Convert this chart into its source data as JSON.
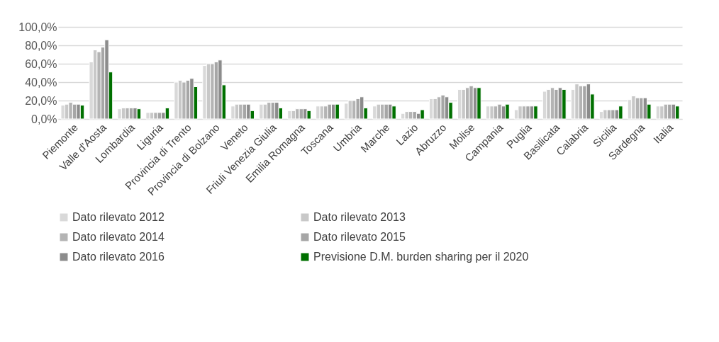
{
  "chart_data": {
    "type": "bar",
    "categories": [
      "Piemonte",
      "Valle d'Aosta",
      "Lombardia",
      "Liguria",
      "Provincia di Trento",
      "Provincia di Bolzano",
      "Veneto",
      "Friuli Venezia Giulia",
      "Emilia Romagna",
      "Toscana",
      "Umbria",
      "Marche",
      "Lazio",
      "Abruzzo",
      "Molise",
      "Campania",
      "Puglia",
      "Basilicata",
      "Calabria",
      "Sicilia",
      "Sardegna",
      "Italia"
    ],
    "series": [
      {
        "name": "Dato rilevato 2012",
        "color": "#d9d9d9",
        "values": [
          15,
          62,
          11,
          7,
          40,
          58,
          14,
          16,
          9,
          14,
          17,
          14,
          6,
          22,
          32,
          14,
          10,
          30,
          32,
          8,
          21,
          14
        ]
      },
      {
        "name": "Dato rilevato 2013",
        "color": "#c8c8c8",
        "values": [
          16,
          75,
          12,
          7,
          42,
          60,
          16,
          16,
          9,
          14,
          20,
          16,
          8,
          22,
          32,
          14,
          14,
          32,
          38,
          10,
          25,
          14
        ]
      },
      {
        "name": "Dato rilevato 2014",
        "color": "#b4b4b4",
        "values": [
          18,
          73,
          12,
          7,
          40,
          60,
          16,
          18,
          11,
          14,
          20,
          16,
          8,
          24,
          34,
          14,
          14,
          34,
          36,
          10,
          23,
          16
        ]
      },
      {
        "name": "Dato rilevato 2015",
        "color": "#a6a6a6",
        "values": [
          16,
          78,
          12,
          7,
          42,
          62,
          16,
          18,
          11,
          16,
          22,
          16,
          8,
          26,
          36,
          16,
          14,
          32,
          36,
          10,
          23,
          16
        ]
      },
      {
        "name": "Dato rilevato 2016",
        "color": "#8c8c8c",
        "values": [
          16,
          86,
          12,
          7,
          44,
          64,
          16,
          18,
          11,
          16,
          24,
          16,
          6,
          24,
          34,
          14,
          14,
          34,
          38,
          10,
          23,
          16
        ]
      },
      {
        "name": "Previsione D.M. burden sharing per il 2020",
        "color": "#007000",
        "values": [
          15,
          51,
          11,
          12,
          35,
          37,
          9,
          12,
          9,
          16,
          12,
          14,
          10,
          18,
          34,
          16,
          14,
          32,
          27,
          14,
          16,
          14
        ]
      }
    ],
    "ylim": [
      0,
      100
    ],
    "yticks": [
      {
        "value": 0,
        "label": "0,0%"
      },
      {
        "value": 20,
        "label": "20,0%"
      },
      {
        "value": 40,
        "label": "40,0%"
      },
      {
        "value": 60,
        "label": "60,0%"
      },
      {
        "value": 80,
        "label": "80,0%"
      },
      {
        "value": 100,
        "label": "100,0%"
      }
    ],
    "grid": "y",
    "legend": "bottom"
  }
}
